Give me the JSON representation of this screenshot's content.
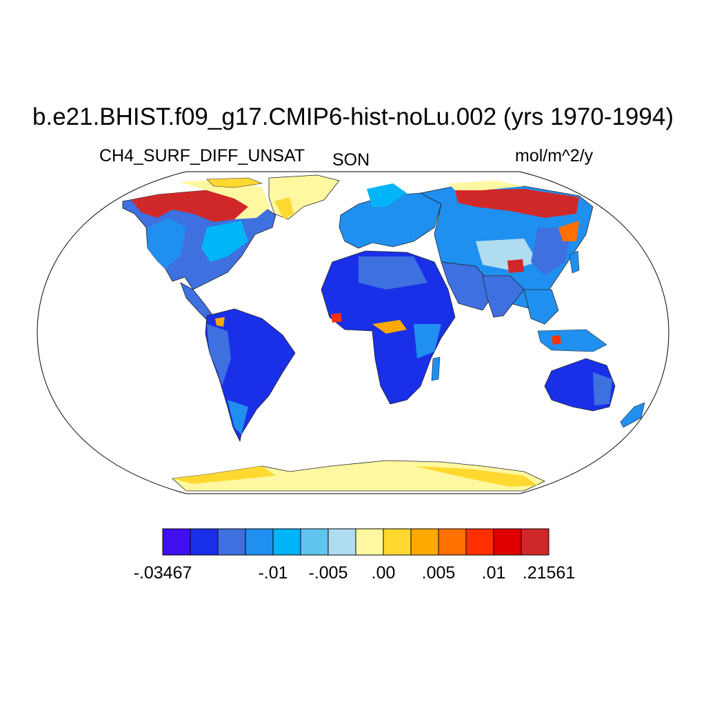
{
  "title": "b.e21.BHIST.f09_g17.CMIP6-hist-noLu.002 (yrs 1970-1994)",
  "variable": "CH4_SURF_DIFF_UNSAT",
  "season": "SON",
  "units": "mol/m^2/y",
  "projection": "Robinson",
  "colorbar": {
    "colors": [
      "#4010f0",
      "#1a30e8",
      "#3e70e0",
      "#2090f0",
      "#00b4f8",
      "#60c4f0",
      "#b0dcf0",
      "#fff8a0",
      "#ffd830",
      "#ffa800",
      "#ff7000",
      "#ff3000",
      "#e00000",
      "#d02828"
    ],
    "labels": [
      {
        "text": "-.03467",
        "boundary": 0
      },
      {
        "text": "-.01",
        "boundary": 4
      },
      {
        "text": "-.005",
        "boundary": 6
      },
      {
        "text": ".00",
        "boundary": 8
      },
      {
        "text": ".005",
        "boundary": 10
      },
      {
        "text": ".01",
        "boundary": 12
      },
      {
        "text": ".21561",
        "boundary": 14
      }
    ]
  },
  "map_data": {
    "regions": [
      {
        "name": "North America",
        "dominant": "-.01 to -.005",
        "colors": [
          "#2090f0",
          "#3e70e0",
          "#00b4f8"
        ]
      },
      {
        "name": "Canadian Arctic / Alaska",
        "dominant": ".01 to .21561",
        "colors": [
          "#d02828",
          "#e00000",
          "#fff8a0"
        ]
      },
      {
        "name": "Greenland",
        "dominant": ".00 to .005",
        "colors": [
          "#fff8a0",
          "#ffd830"
        ]
      },
      {
        "name": "South America",
        "dominant": "-.03467 to -.01",
        "colors": [
          "#1a30e8",
          "#3e70e0"
        ]
      },
      {
        "name": "Africa",
        "dominant": "-.03467 to -.01",
        "colors": [
          "#1a30e8",
          "#3e70e0"
        ]
      },
      {
        "name": "Europe",
        "dominant": "-.01 to -.005",
        "colors": [
          "#2090f0",
          "#00b4f8"
        ]
      },
      {
        "name": "Siberia",
        "dominant": ".01 to .21561",
        "colors": [
          "#d02828",
          "#e00000"
        ]
      },
      {
        "name": "Asia",
        "dominant": "-.01 to -.005",
        "colors": [
          "#2090f0",
          "#3e70e0",
          "#b0dcf0"
        ]
      },
      {
        "name": "Australia",
        "dominant": "-.03467 to -.01",
        "colors": [
          "#1a30e8",
          "#3e70e0"
        ]
      },
      {
        "name": "Antarctica",
        "dominant": ".00 to .005",
        "colors": [
          "#fff8a0",
          "#ffd830"
        ]
      }
    ]
  }
}
